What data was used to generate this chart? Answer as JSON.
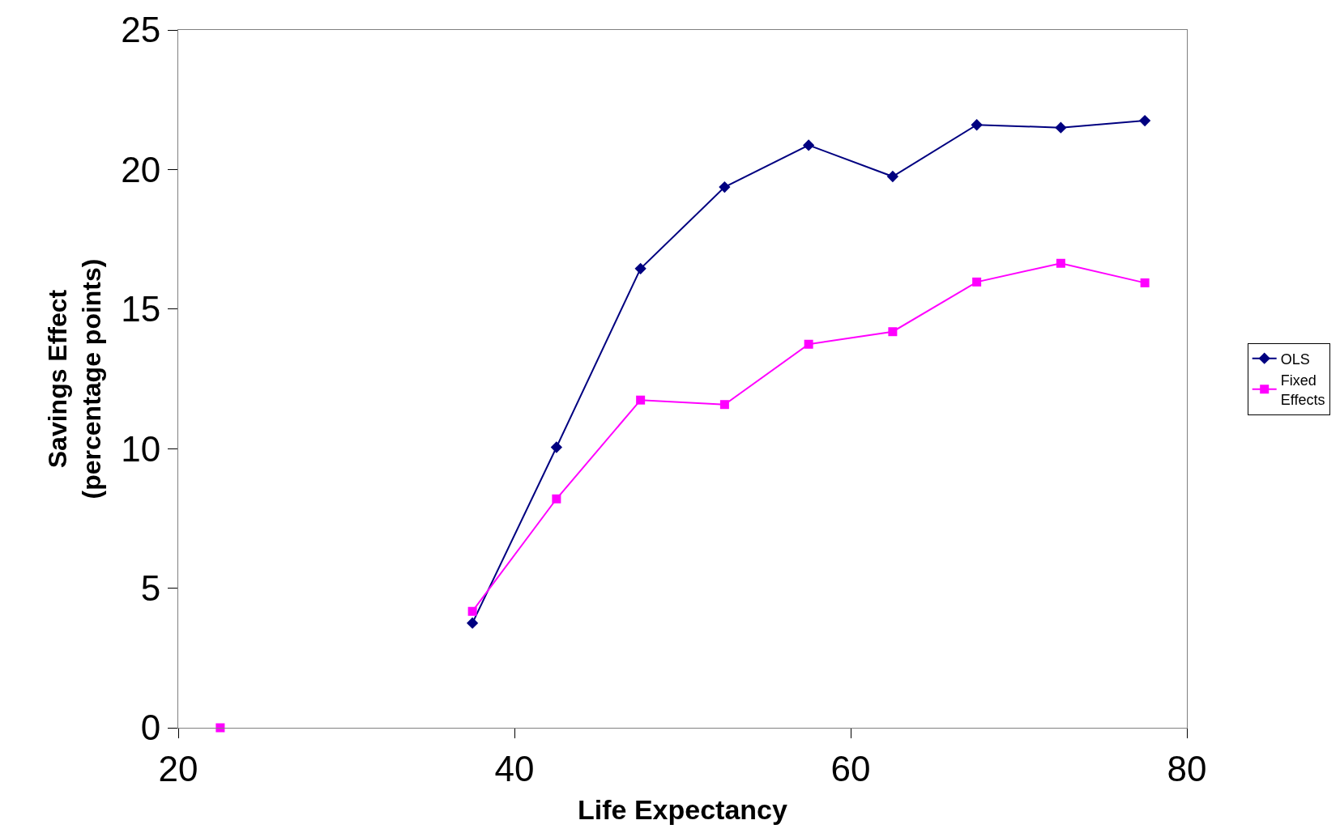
{
  "chart_data": {
    "type": "line",
    "xlabel": "Life Expectancy",
    "ylabel": "Savings Effect\n(percentage points)",
    "x": [
      22.5,
      27.5,
      32.5,
      37.5,
      42.5,
      47.5,
      52.5,
      57.5,
      62.5,
      67.5,
      72.5,
      77.5
    ],
    "series": [
      {
        "name": "OLS",
        "color": "#000080",
        "marker": "diamond",
        "values": [
          null,
          null,
          null,
          3.75,
          10.05,
          16.45,
          19.37,
          20.87,
          19.75,
          21.6,
          21.5,
          21.75
        ]
      },
      {
        "name": "Fixed\nEffects",
        "color": "#ff00ff",
        "marker": "square",
        "values": [
          0,
          null,
          null,
          4.17,
          8.2,
          11.74,
          11.58,
          13.74,
          14.19,
          15.97,
          16.64,
          15.94
        ]
      }
    ],
    "xlim": [
      20,
      80
    ],
    "xticks": [
      20,
      40,
      60,
      80
    ],
    "ylim": [
      0,
      25
    ],
    "yticks": [
      0,
      5,
      10,
      15,
      20,
      25
    ],
    "legend": "right",
    "line_style": "solid"
  }
}
